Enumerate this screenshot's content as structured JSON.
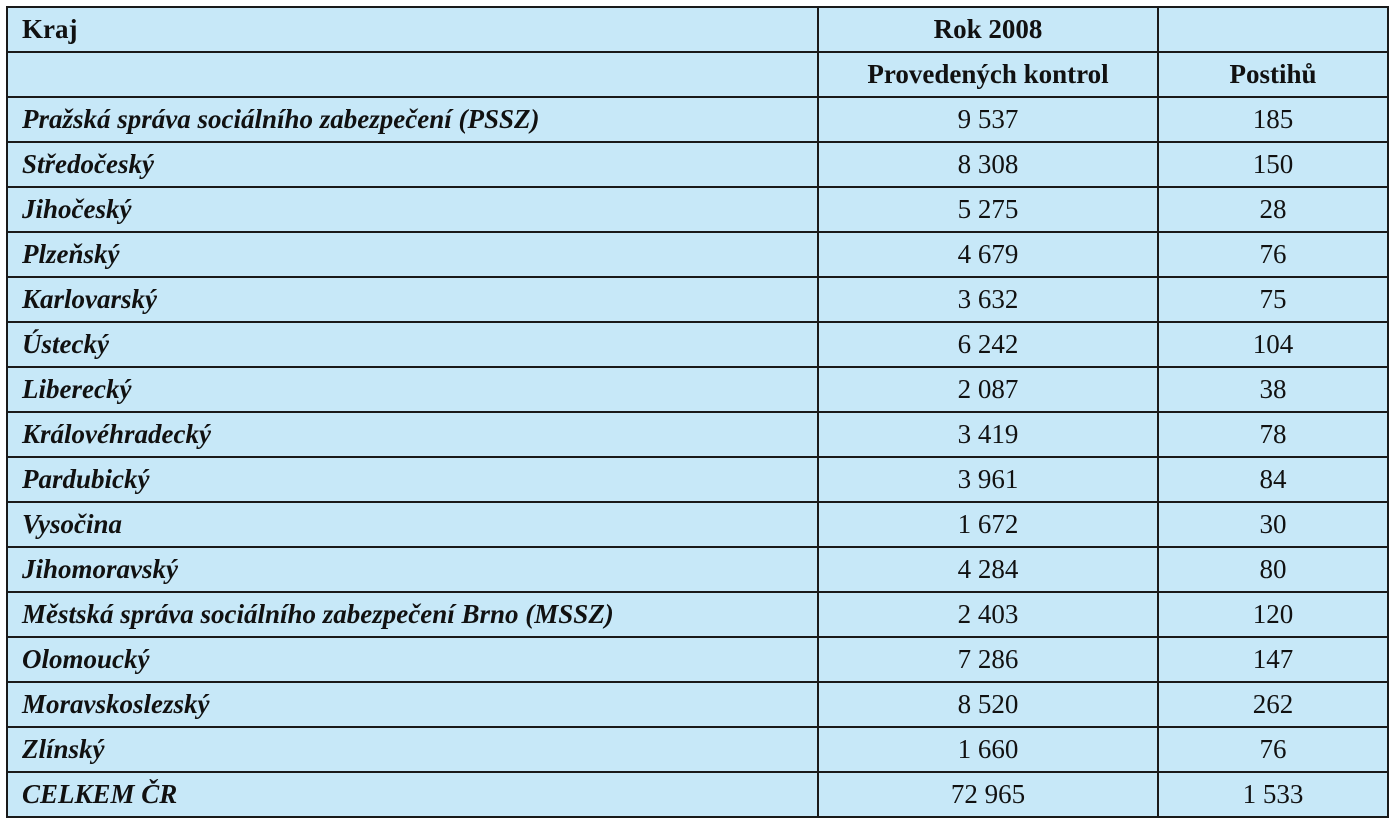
{
  "table": {
    "headers": {
      "region": "Kraj",
      "year": "Rok 2008",
      "checks": "Provedených kontrol",
      "penalties": "Postihů"
    },
    "rows": [
      {
        "region": "Pražská správa sociálního zabezpečení (PSSZ)",
        "checks": "9 537",
        "penalties": "185"
      },
      {
        "region": "Středočeský",
        "checks": "8 308",
        "penalties": "150"
      },
      {
        "region": "Jihočeský",
        "checks": "5 275",
        "penalties": "28"
      },
      {
        "region": "Plzeňský",
        "checks": "4 679",
        "penalties": "76"
      },
      {
        "region": "Karlovarský",
        "checks": "3 632",
        "penalties": "75"
      },
      {
        "region": "Ústecký",
        "checks": "6 242",
        "penalties": "104"
      },
      {
        "region": "Liberecký",
        "checks": "2 087",
        "penalties": "38"
      },
      {
        "region": "Královéhradecký",
        "checks": "3 419",
        "penalties": "78"
      },
      {
        "region": "Pardubický",
        "checks": "3 961",
        "penalties": "84"
      },
      {
        "region": "Vysočina",
        "checks": "1 672",
        "penalties": "30"
      },
      {
        "region": "Jihomoravský",
        "checks": "4 284",
        "penalties": "80"
      },
      {
        "region": "Městská správa sociálního zabezpečení Brno (MSSZ)",
        "checks": "2 403",
        "penalties": "120"
      },
      {
        "region": "Olomoucký",
        "checks": "7 286",
        "penalties": "147"
      },
      {
        "region": "Moravskoslezský",
        "checks": "8 520",
        "penalties": "262"
      },
      {
        "region": "Zlínský",
        "checks": "1 660",
        "penalties": "76"
      }
    ],
    "total": {
      "region": "CELKEM ČR",
      "checks": "72 965",
      "penalties": "1 533"
    }
  }
}
